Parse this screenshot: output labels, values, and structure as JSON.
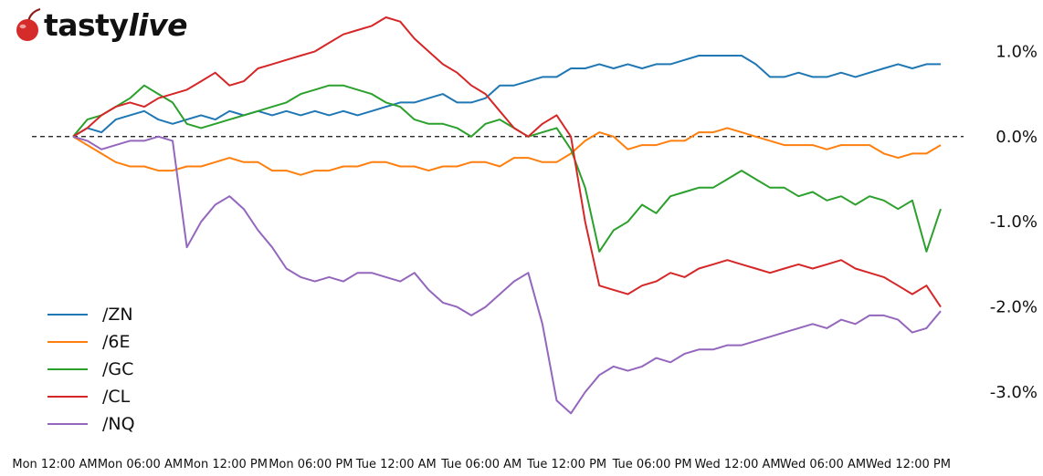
{
  "brand": {
    "name_part1": "tasty",
    "name_part2": "live",
    "logo_icon": "cherry-icon",
    "logo_color": "#d62b2b"
  },
  "chart_data": {
    "type": "line",
    "title": "",
    "xlabel": "",
    "ylabel": "",
    "y_unit": "%",
    "ylim": [
      -3.45,
      1.55
    ],
    "y_ticks": [
      1.0,
      0.0,
      -1.0,
      -2.0,
      -3.0
    ],
    "y_tick_labels": [
      "1.0%",
      "0.0%",
      "-1.0%",
      "-2.0%",
      "-3.0%"
    ],
    "y_axis_side": "right",
    "baseline": 0.0,
    "baseline_style": "dashed",
    "grid": false,
    "legend_position": "lower-left",
    "x": [
      0,
      1,
      2,
      3,
      4,
      5,
      6,
      7,
      8,
      9,
      10,
      11,
      12,
      13,
      14,
      15,
      16,
      17,
      18,
      19,
      20,
      21,
      22,
      23,
      24,
      25,
      26,
      27,
      28,
      29,
      30,
      31,
      32,
      33,
      34,
      35,
      36,
      37,
      38,
      39,
      40,
      41,
      42,
      43,
      44,
      45,
      46,
      47,
      48,
      49,
      50,
      51,
      52,
      53,
      54,
      55,
      56,
      57,
      58,
      59,
      60,
      61
    ],
    "x_unit": "hours since Mon 12:00 AM",
    "x_ticks": [
      0,
      6,
      12,
      18,
      24,
      30,
      36,
      42,
      48,
      54,
      60
    ],
    "x_tick_labels": [
      "Mon 12:00 AM",
      "Mon 06:00 AM",
      "Mon 12:00 PM",
      "Mon 06:00 PM",
      "Tue 12:00 AM",
      "Tue 06:00 AM",
      "Tue 12:00 PM",
      "Tue 06:00 PM",
      "Wed 12:00 AM",
      "Wed 06:00 AM",
      "Wed 12:00 PM"
    ],
    "series": [
      {
        "name": "/ZN",
        "color": "#1f77b4",
        "values": [
          0.0,
          0.1,
          0.05,
          0.2,
          0.25,
          0.3,
          0.2,
          0.15,
          0.2,
          0.25,
          0.2,
          0.3,
          0.25,
          0.3,
          0.25,
          0.3,
          0.25,
          0.3,
          0.25,
          0.3,
          0.25,
          0.3,
          0.35,
          0.4,
          0.4,
          0.45,
          0.5,
          0.4,
          0.4,
          0.45,
          0.6,
          0.6,
          0.65,
          0.7,
          0.7,
          0.8,
          0.8,
          0.85,
          0.8,
          0.85,
          0.8,
          0.85,
          0.85,
          0.9,
          0.95,
          0.95,
          0.95,
          0.95,
          0.85,
          0.7,
          0.7,
          0.75,
          0.7,
          0.7,
          0.75,
          0.7,
          0.75,
          0.8,
          0.85,
          0.8,
          0.85,
          0.85
        ]
      },
      {
        "name": "/6E",
        "color": "#ff7f0e",
        "values": [
          0.0,
          -0.1,
          -0.2,
          -0.3,
          -0.35,
          -0.35,
          -0.4,
          -0.4,
          -0.35,
          -0.35,
          -0.3,
          -0.25,
          -0.3,
          -0.3,
          -0.4,
          -0.4,
          -0.45,
          -0.4,
          -0.4,
          -0.35,
          -0.35,
          -0.3,
          -0.3,
          -0.35,
          -0.35,
          -0.4,
          -0.35,
          -0.35,
          -0.3,
          -0.3,
          -0.35,
          -0.25,
          -0.25,
          -0.3,
          -0.3,
          -0.2,
          -0.05,
          0.05,
          0.0,
          -0.15,
          -0.1,
          -0.1,
          -0.05,
          -0.05,
          0.05,
          0.05,
          0.1,
          0.05,
          0.0,
          -0.05,
          -0.1,
          -0.1,
          -0.1,
          -0.15,
          -0.1,
          -0.1,
          -0.1,
          -0.2,
          -0.25,
          -0.2,
          -0.2,
          -0.1
        ]
      },
      {
        "name": "/GC",
        "color": "#2ca02c",
        "values": [
          0.0,
          0.2,
          0.25,
          0.35,
          0.45,
          0.6,
          0.5,
          0.4,
          0.15,
          0.1,
          0.15,
          0.2,
          0.25,
          0.3,
          0.35,
          0.4,
          0.5,
          0.55,
          0.6,
          0.6,
          0.55,
          0.5,
          0.4,
          0.35,
          0.2,
          0.15,
          0.15,
          0.1,
          0.0,
          0.15,
          0.2,
          0.1,
          0.0,
          0.05,
          0.1,
          -0.15,
          -0.6,
          -1.35,
          -1.1,
          -1.0,
          -0.8,
          -0.9,
          -0.7,
          -0.65,
          -0.6,
          -0.6,
          -0.5,
          -0.4,
          -0.5,
          -0.6,
          -0.6,
          -0.7,
          -0.65,
          -0.75,
          -0.7,
          -0.8,
          -0.7,
          -0.75,
          -0.85,
          -0.75,
          -1.35,
          -0.85
        ]
      },
      {
        "name": "/CL",
        "color": "#d62728",
        "values": [
          0.0,
          0.1,
          0.25,
          0.35,
          0.4,
          0.35,
          0.45,
          0.5,
          0.55,
          0.65,
          0.75,
          0.6,
          0.65,
          0.8,
          0.85,
          0.9,
          0.95,
          1.0,
          1.1,
          1.2,
          1.25,
          1.3,
          1.4,
          1.35,
          1.15,
          1.0,
          0.85,
          0.75,
          0.6,
          0.5,
          0.3,
          0.1,
          0.0,
          0.15,
          0.25,
          0.0,
          -1.0,
          -1.75,
          -1.8,
          -1.85,
          -1.75,
          -1.7,
          -1.6,
          -1.65,
          -1.55,
          -1.5,
          -1.45,
          -1.5,
          -1.55,
          -1.6,
          -1.55,
          -1.5,
          -1.55,
          -1.5,
          -1.45,
          -1.55,
          -1.6,
          -1.65,
          -1.75,
          -1.85,
          -1.75,
          -2.0
        ]
      },
      {
        "name": "/NQ",
        "color": "#9467bd",
        "values": [
          0.0,
          -0.05,
          -0.15,
          -0.1,
          -0.05,
          -0.05,
          0.0,
          -0.05,
          -1.3,
          -1.0,
          -0.8,
          -0.7,
          -0.85,
          -1.1,
          -1.3,
          -1.55,
          -1.65,
          -1.7,
          -1.65,
          -1.7,
          -1.6,
          -1.6,
          -1.65,
          -1.7,
          -1.6,
          -1.8,
          -1.95,
          -2.0,
          -2.1,
          -2.0,
          -1.85,
          -1.7,
          -1.6,
          -2.2,
          -3.1,
          -3.25,
          -3.0,
          -2.8,
          -2.7,
          -2.75,
          -2.7,
          -2.6,
          -2.65,
          -2.55,
          -2.5,
          -2.5,
          -2.45,
          -2.45,
          -2.4,
          -2.35,
          -2.3,
          -2.25,
          -2.2,
          -2.25,
          -2.15,
          -2.2,
          -2.1,
          -2.1,
          -2.15,
          -2.3,
          -2.25,
          -2.05
        ]
      }
    ]
  }
}
